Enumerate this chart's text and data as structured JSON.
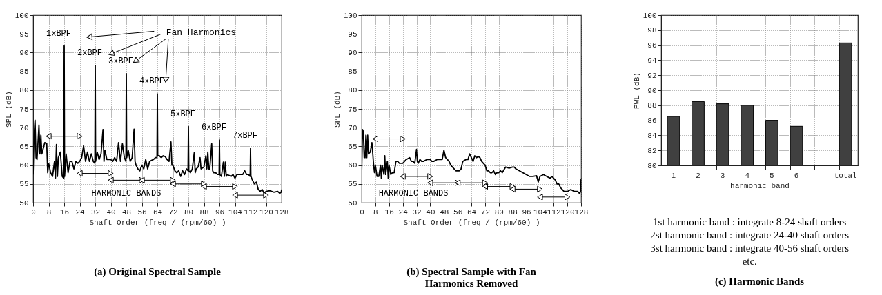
{
  "chart_data": [
    {
      "type": "line",
      "title": "(a) Original Spectral Sample",
      "xlabel": "Shaft Order (freq / (rpm/60) )",
      "ylabel": "SPL (dB)",
      "xlim": [
        0,
        128
      ],
      "xticks": [
        0,
        8,
        16,
        24,
        32,
        40,
        48,
        56,
        64,
        72,
        80,
        88,
        96,
        104,
        112,
        120,
        128
      ],
      "ylim": [
        50,
        100
      ],
      "yticks": [
        50,
        55,
        60,
        65,
        70,
        75,
        80,
        85,
        90,
        95,
        100
      ],
      "grid": true,
      "legend": false,
      "series": [
        {
          "color": "#000000",
          "x": [
            0,
            0.5,
            1,
            1.5,
            2,
            2.5,
            3,
            3.5,
            4,
            4.5,
            5,
            6,
            7,
            7.5,
            8,
            9,
            10,
            11,
            11.5,
            12,
            12.5,
            13,
            14,
            15,
            15.8,
            16,
            16.2,
            17,
            18,
            19,
            20,
            21,
            22,
            23,
            24,
            25,
            26,
            27,
            28,
            29,
            30,
            31,
            31.8,
            32,
            32.2,
            33,
            34,
            35,
            36,
            36.5,
            37,
            38,
            40,
            41,
            42,
            43,
            44,
            45,
            46,
            47,
            47.8,
            48,
            48.2,
            49,
            50,
            51,
            52,
            52.5,
            53,
            54,
            55,
            56,
            57,
            58,
            59,
            60,
            61,
            62,
            63,
            63.8,
            64,
            64.2,
            65,
            66,
            67,
            68,
            69,
            70,
            71,
            71.5,
            72,
            73,
            74,
            75,
            76,
            77,
            78,
            79,
            79.8,
            80,
            80.2,
            81,
            82,
            83,
            83.5,
            84,
            85,
            86,
            86.5,
            88,
            89,
            89.5,
            90,
            90.5,
            91,
            92,
            92.5,
            93,
            94,
            95,
            95.8,
            96,
            96.2,
            97,
            98,
            98.5,
            99,
            99.5,
            100,
            102,
            103,
            104,
            105,
            106,
            108,
            109,
            110,
            111,
            111.8,
            112,
            112.2,
            113,
            114,
            115,
            116,
            117,
            118,
            119,
            120,
            122,
            124,
            126,
            127,
            127.8,
            128
          ],
          "values": [
            57.5,
            68,
            72,
            62,
            61.5,
            66,
            70.7,
            63,
            68,
            63,
            64,
            66,
            65.8,
            58,
            60.5,
            58,
            57,
            61,
            56.5,
            65.5,
            57,
            62,
            63.5,
            57,
            56.5,
            91.8,
            57,
            63,
            58,
            61,
            61,
            59,
            61,
            60.5,
            61,
            62,
            65.2,
            61,
            63.5,
            61,
            63,
            61,
            60.5,
            86.6,
            61,
            63.5,
            61.5,
            63,
            69.5,
            61,
            64,
            61.5,
            61.5,
            61,
            62,
            61,
            66,
            61,
            65.7,
            62,
            61,
            84.4,
            62,
            64,
            61,
            62,
            69.6,
            61,
            60,
            59,
            58.5,
            60,
            59,
            61.5,
            59,
            61,
            61.3,
            61.5,
            62,
            62,
            79,
            62.5,
            62.5,
            62,
            62.5,
            62.3,
            61.5,
            61,
            66.2,
            60,
            60,
            58.5,
            58,
            58.5,
            57,
            58.5,
            57.5,
            59,
            58.5,
            70.3,
            58.5,
            58,
            59,
            63.3,
            58,
            59,
            59.5,
            62,
            59,
            59.5,
            62.5,
            59,
            63.5,
            59,
            59,
            65.7,
            58.5,
            58,
            58,
            57.5,
            57.5,
            66.7,
            57.5,
            57,
            60.8,
            57,
            60.8,
            57,
            57.5,
            57,
            57.5,
            56.5,
            57.5,
            57.5,
            57.5,
            58.5,
            57.5,
            57.5,
            57,
            64.5,
            57,
            56,
            55,
            55.5,
            53.5,
            53,
            53.5,
            52.5,
            53,
            53.2,
            52.8,
            53,
            52.5,
            52.8,
            53.5
          ]
        },
        {
          "color": "#000000",
          "marker": "triangle",
          "x": [
            8,
            24
          ],
          "values": [
            67.7,
            67.7
          ]
        },
        {
          "color": "#000000",
          "marker": "triangle",
          "x": [
            24,
            40
          ],
          "values": [
            57.8,
            57.8
          ]
        },
        {
          "color": "#000000",
          "marker": "triangle",
          "x": [
            40,
            56
          ],
          "values": [
            56,
            56
          ]
        },
        {
          "color": "#000000",
          "marker": "triangle",
          "x": [
            56,
            72
          ],
          "values": [
            56,
            56
          ]
        },
        {
          "color": "#000000",
          "marker": "triangle",
          "x": [
            72,
            88
          ],
          "values": [
            55,
            55
          ]
        },
        {
          "color": "#000000",
          "marker": "triangle",
          "x": [
            88,
            104
          ],
          "values": [
            54.3,
            54.3
          ]
        },
        {
          "color": "#000000",
          "marker": "triangle",
          "x": [
            104,
            120
          ],
          "values": [
            52,
            52
          ]
        }
      ],
      "annotations": [
        {
          "text": "1xBPF",
          "x": 16,
          "y": 91.8
        },
        {
          "text": "2xBPF",
          "x": 32,
          "y": 86.6
        },
        {
          "text": "3xBPF",
          "x": 48,
          "y": 84.4
        },
        {
          "text": "4xBPF",
          "x": 64,
          "y": 79
        },
        {
          "text": "5xBPF",
          "x": 80,
          "y": 70.3
        },
        {
          "text": "6xBPF",
          "x": 96,
          "y": 66.7
        },
        {
          "text": "7xBPF",
          "x": 112,
          "y": 64.5
        },
        "Fan Harmonics",
        "HARMONIC BANDS"
      ]
    },
    {
      "type": "line",
      "title": "(b) Spectral Sample with Fan Harmonics Removed",
      "xlabel": "Shaft Order (freq / (rpm/60) )",
      "ylabel": "SPL (dB)",
      "xlim": [
        0,
        128
      ],
      "xticks": [
        0,
        8,
        16,
        24,
        32,
        40,
        48,
        56,
        64,
        72,
        80,
        88,
        96,
        104,
        112,
        120,
        128
      ],
      "ylim": [
        50,
        100
      ],
      "yticks": [
        50,
        55,
        60,
        65,
        70,
        75,
        80,
        85,
        90,
        95,
        100
      ],
      "grid": true,
      "legend": false,
      "series": [
        {
          "color": "#000000",
          "x": [
            0,
            0.5,
            1,
            1.5,
            2,
            2.5,
            3,
            3.5,
            4,
            5,
            6,
            6.5,
            7,
            7.5,
            8,
            9,
            10,
            11,
            11.5,
            12,
            13,
            13.5,
            14,
            15,
            15.5,
            16,
            17,
            18,
            19,
            20,
            21,
            22,
            24,
            25,
            26,
            28,
            29,
            30,
            31,
            32,
            32.5,
            33,
            34,
            35,
            36,
            38,
            40,
            41,
            42,
            44,
            46,
            47,
            48,
            49,
            50,
            51,
            52,
            54,
            55,
            56,
            57,
            58,
            59,
            60,
            61,
            62,
            63,
            64,
            65,
            66,
            67,
            68,
            69,
            70,
            71,
            72,
            73,
            74,
            75,
            76,
            77,
            78,
            79,
            80,
            81,
            82,
            84,
            86,
            88,
            89,
            90,
            92,
            94,
            96,
            98,
            100,
            102,
            103,
            104,
            106,
            108,
            110,
            111,
            112,
            113,
            114,
            115,
            116,
            117,
            118,
            119,
            120,
            122,
            124,
            126,
            127,
            127.8,
            128
          ],
          "values": [
            57.5,
            69.5,
            69,
            62,
            62,
            68,
            62,
            68,
            63,
            63.5,
            66,
            63,
            60,
            58,
            60,
            57,
            57,
            60,
            56.5,
            60,
            57.5,
            62.5,
            57.5,
            61,
            56.5,
            60,
            57.5,
            58,
            58,
            61,
            61,
            60.5,
            60.5,
            61,
            61.5,
            62,
            61,
            61,
            60.5,
            64.2,
            61,
            60.5,
            61.5,
            61,
            61,
            61.5,
            61.5,
            61,
            61,
            61.5,
            61.5,
            61.5,
            64,
            62,
            61.5,
            61,
            60,
            59,
            58.5,
            58.5,
            58.5,
            59,
            61,
            61.3,
            61.5,
            61.5,
            63,
            62,
            61,
            62.5,
            62,
            62.3,
            62,
            61,
            60.5,
            60,
            58.5,
            58.5,
            58,
            58,
            58.5,
            57.5,
            58,
            58,
            58.5,
            58,
            59.5,
            59.2,
            59.5,
            59.5,
            59,
            58.5,
            58,
            57.5,
            57,
            57,
            57.2,
            55.5,
            57,
            57.5,
            57,
            56.5,
            57,
            56.5,
            56,
            55,
            55,
            54,
            53.5,
            53,
            53,
            53,
            53.5,
            53,
            53,
            52.5,
            53,
            56.3
          ]
        },
        {
          "color": "#000000",
          "marker": "triangle",
          "x": [
            8,
            24
          ],
          "values": [
            67,
            67
          ]
        },
        {
          "color": "#000000",
          "marker": "triangle",
          "x": [
            24,
            40
          ],
          "values": [
            57,
            57
          ]
        },
        {
          "color": "#000000",
          "marker": "triangle",
          "x": [
            40,
            56
          ],
          "values": [
            55.3,
            55.3
          ]
        },
        {
          "color": "#000000",
          "marker": "triangle",
          "x": [
            56,
            72
          ],
          "values": [
            55.3,
            55.3
          ]
        },
        {
          "color": "#000000",
          "marker": "triangle",
          "x": [
            72,
            88
          ],
          "values": [
            54.3,
            54.3
          ]
        },
        {
          "color": "#000000",
          "marker": "triangle",
          "x": [
            88,
            104
          ],
          "values": [
            53.6,
            53.6
          ]
        },
        {
          "color": "#000000",
          "marker": "triangle",
          "x": [
            104,
            120
          ],
          "values": [
            51.5,
            51.5
          ]
        }
      ],
      "annotations": [
        "HARMONIC BANDS"
      ]
    },
    {
      "type": "bar",
      "title": "(c) Harmonic Bands",
      "xlabel": "harmonic band",
      "ylabel": "PWL (dB)",
      "categories": [
        "1",
        "2",
        "3",
        "4",
        "5",
        "6",
        null,
        "total"
      ],
      "values": [
        86.5,
        88.5,
        88.2,
        88.0,
        86.0,
        85.2,
        null,
        96.3
      ],
      "color": "#404040",
      "ylim": [
        80,
        100
      ],
      "yticks": [
        80,
        82,
        84,
        86,
        88,
        90,
        92,
        94,
        96,
        98,
        100
      ],
      "grid": true,
      "legend": false,
      "annotations": [
        "1st harmonic band : integrate 8-24 shaft orders",
        "2st harmonic band : integrate 24-40 shaft orders",
        "3st harmonic band : integrate 40-56 shaft orders",
        "etc."
      ]
    }
  ]
}
